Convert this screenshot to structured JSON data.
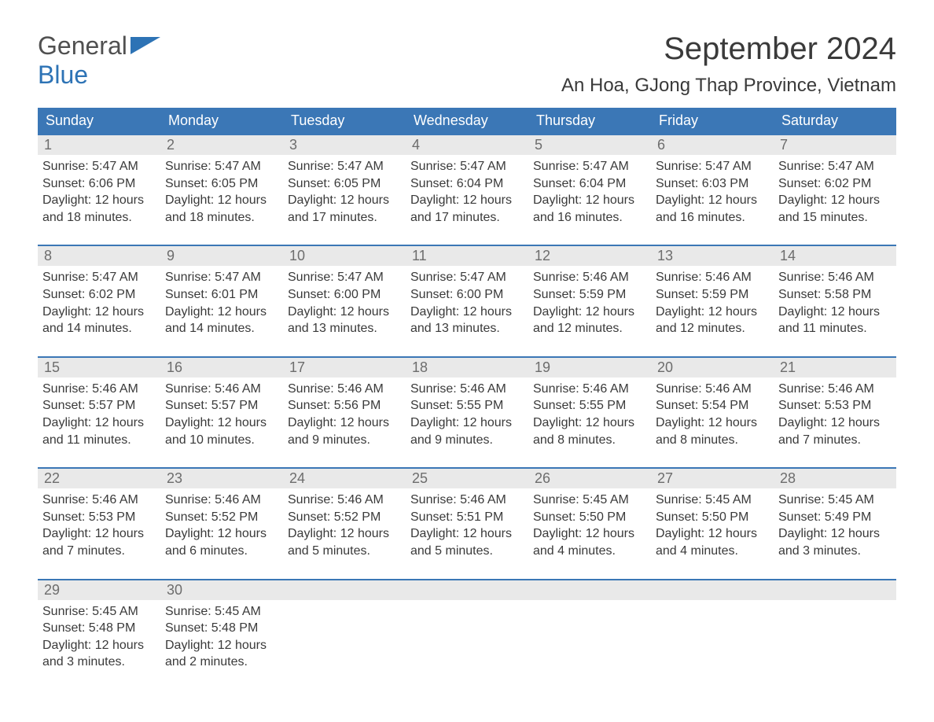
{
  "logo": {
    "text_general": "General",
    "text_blue": "Blue"
  },
  "header": {
    "month_title": "September 2024",
    "location": "An Hoa, GJong Thap Province, Vietnam"
  },
  "colors": {
    "header_bar": "#3b77b6",
    "header_text": "#ffffff",
    "week_border": "#3b77b6",
    "daynum_bg": "#e9e9e9",
    "daynum_text": "#6d6d6d",
    "body_text": "#3a3a3a",
    "logo_blue": "#2d73b5",
    "logo_gray": "#505050",
    "background": "#ffffff"
  },
  "layout": {
    "columns": 7,
    "rows": 5,
    "font_family": "Arial",
    "month_title_fontsize": 40,
    "location_fontsize": 24,
    "weekday_fontsize": 18,
    "daynum_fontsize": 18,
    "dayinfo_fontsize": 16
  },
  "weekdays": [
    "Sunday",
    "Monday",
    "Tuesday",
    "Wednesday",
    "Thursday",
    "Friday",
    "Saturday"
  ],
  "weeks": [
    [
      {
        "num": "1",
        "sunrise": "Sunrise: 5:47 AM",
        "sunset": "Sunset: 6:06 PM",
        "dl1": "Daylight: 12 hours",
        "dl2": "and 18 minutes."
      },
      {
        "num": "2",
        "sunrise": "Sunrise: 5:47 AM",
        "sunset": "Sunset: 6:05 PM",
        "dl1": "Daylight: 12 hours",
        "dl2": "and 18 minutes."
      },
      {
        "num": "3",
        "sunrise": "Sunrise: 5:47 AM",
        "sunset": "Sunset: 6:05 PM",
        "dl1": "Daylight: 12 hours",
        "dl2": "and 17 minutes."
      },
      {
        "num": "4",
        "sunrise": "Sunrise: 5:47 AM",
        "sunset": "Sunset: 6:04 PM",
        "dl1": "Daylight: 12 hours",
        "dl2": "and 17 minutes."
      },
      {
        "num": "5",
        "sunrise": "Sunrise: 5:47 AM",
        "sunset": "Sunset: 6:04 PM",
        "dl1": "Daylight: 12 hours",
        "dl2": "and 16 minutes."
      },
      {
        "num": "6",
        "sunrise": "Sunrise: 5:47 AM",
        "sunset": "Sunset: 6:03 PM",
        "dl1": "Daylight: 12 hours",
        "dl2": "and 16 minutes."
      },
      {
        "num": "7",
        "sunrise": "Sunrise: 5:47 AM",
        "sunset": "Sunset: 6:02 PM",
        "dl1": "Daylight: 12 hours",
        "dl2": "and 15 minutes."
      }
    ],
    [
      {
        "num": "8",
        "sunrise": "Sunrise: 5:47 AM",
        "sunset": "Sunset: 6:02 PM",
        "dl1": "Daylight: 12 hours",
        "dl2": "and 14 minutes."
      },
      {
        "num": "9",
        "sunrise": "Sunrise: 5:47 AM",
        "sunset": "Sunset: 6:01 PM",
        "dl1": "Daylight: 12 hours",
        "dl2": "and 14 minutes."
      },
      {
        "num": "10",
        "sunrise": "Sunrise: 5:47 AM",
        "sunset": "Sunset: 6:00 PM",
        "dl1": "Daylight: 12 hours",
        "dl2": "and 13 minutes."
      },
      {
        "num": "11",
        "sunrise": "Sunrise: 5:47 AM",
        "sunset": "Sunset: 6:00 PM",
        "dl1": "Daylight: 12 hours",
        "dl2": "and 13 minutes."
      },
      {
        "num": "12",
        "sunrise": "Sunrise: 5:46 AM",
        "sunset": "Sunset: 5:59 PM",
        "dl1": "Daylight: 12 hours",
        "dl2": "and 12 minutes."
      },
      {
        "num": "13",
        "sunrise": "Sunrise: 5:46 AM",
        "sunset": "Sunset: 5:59 PM",
        "dl1": "Daylight: 12 hours",
        "dl2": "and 12 minutes."
      },
      {
        "num": "14",
        "sunrise": "Sunrise: 5:46 AM",
        "sunset": "Sunset: 5:58 PM",
        "dl1": "Daylight: 12 hours",
        "dl2": "and 11 minutes."
      }
    ],
    [
      {
        "num": "15",
        "sunrise": "Sunrise: 5:46 AM",
        "sunset": "Sunset: 5:57 PM",
        "dl1": "Daylight: 12 hours",
        "dl2": "and 11 minutes."
      },
      {
        "num": "16",
        "sunrise": "Sunrise: 5:46 AM",
        "sunset": "Sunset: 5:57 PM",
        "dl1": "Daylight: 12 hours",
        "dl2": "and 10 minutes."
      },
      {
        "num": "17",
        "sunrise": "Sunrise: 5:46 AM",
        "sunset": "Sunset: 5:56 PM",
        "dl1": "Daylight: 12 hours",
        "dl2": "and 9 minutes."
      },
      {
        "num": "18",
        "sunrise": "Sunrise: 5:46 AM",
        "sunset": "Sunset: 5:55 PM",
        "dl1": "Daylight: 12 hours",
        "dl2": "and 9 minutes."
      },
      {
        "num": "19",
        "sunrise": "Sunrise: 5:46 AM",
        "sunset": "Sunset: 5:55 PM",
        "dl1": "Daylight: 12 hours",
        "dl2": "and 8 minutes."
      },
      {
        "num": "20",
        "sunrise": "Sunrise: 5:46 AM",
        "sunset": "Sunset: 5:54 PM",
        "dl1": "Daylight: 12 hours",
        "dl2": "and 8 minutes."
      },
      {
        "num": "21",
        "sunrise": "Sunrise: 5:46 AM",
        "sunset": "Sunset: 5:53 PM",
        "dl1": "Daylight: 12 hours",
        "dl2": "and 7 minutes."
      }
    ],
    [
      {
        "num": "22",
        "sunrise": "Sunrise: 5:46 AM",
        "sunset": "Sunset: 5:53 PM",
        "dl1": "Daylight: 12 hours",
        "dl2": "and 7 minutes."
      },
      {
        "num": "23",
        "sunrise": "Sunrise: 5:46 AM",
        "sunset": "Sunset: 5:52 PM",
        "dl1": "Daylight: 12 hours",
        "dl2": "and 6 minutes."
      },
      {
        "num": "24",
        "sunrise": "Sunrise: 5:46 AM",
        "sunset": "Sunset: 5:52 PM",
        "dl1": "Daylight: 12 hours",
        "dl2": "and 5 minutes."
      },
      {
        "num": "25",
        "sunrise": "Sunrise: 5:46 AM",
        "sunset": "Sunset: 5:51 PM",
        "dl1": "Daylight: 12 hours",
        "dl2": "and 5 minutes."
      },
      {
        "num": "26",
        "sunrise": "Sunrise: 5:45 AM",
        "sunset": "Sunset: 5:50 PM",
        "dl1": "Daylight: 12 hours",
        "dl2": "and 4 minutes."
      },
      {
        "num": "27",
        "sunrise": "Sunrise: 5:45 AM",
        "sunset": "Sunset: 5:50 PM",
        "dl1": "Daylight: 12 hours",
        "dl2": "and 4 minutes."
      },
      {
        "num": "28",
        "sunrise": "Sunrise: 5:45 AM",
        "sunset": "Sunset: 5:49 PM",
        "dl1": "Daylight: 12 hours",
        "dl2": "and 3 minutes."
      }
    ],
    [
      {
        "num": "29",
        "sunrise": "Sunrise: 5:45 AM",
        "sunset": "Sunset: 5:48 PM",
        "dl1": "Daylight: 12 hours",
        "dl2": "and 3 minutes."
      },
      {
        "num": "30",
        "sunrise": "Sunrise: 5:45 AM",
        "sunset": "Sunset: 5:48 PM",
        "dl1": "Daylight: 12 hours",
        "dl2": "and 2 minutes."
      },
      {
        "num": "",
        "sunrise": "",
        "sunset": "",
        "dl1": "",
        "dl2": ""
      },
      {
        "num": "",
        "sunrise": "",
        "sunset": "",
        "dl1": "",
        "dl2": ""
      },
      {
        "num": "",
        "sunrise": "",
        "sunset": "",
        "dl1": "",
        "dl2": ""
      },
      {
        "num": "",
        "sunrise": "",
        "sunset": "",
        "dl1": "",
        "dl2": ""
      },
      {
        "num": "",
        "sunrise": "",
        "sunset": "",
        "dl1": "",
        "dl2": ""
      }
    ]
  ]
}
